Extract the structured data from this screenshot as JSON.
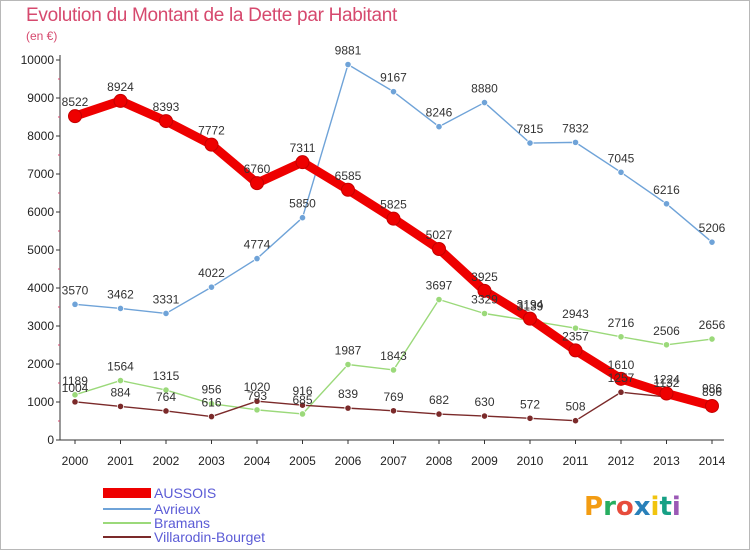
{
  "header": {
    "title": "Evolution du Montant de la Dette par Habitant",
    "subtitle": "(en €)"
  },
  "logo": {
    "letters": [
      "P",
      "r",
      "o",
      "x",
      "i",
      "t",
      "i"
    ],
    "colors": [
      "#f39c12",
      "#27ae60",
      "#e74c3c",
      "#2980b9",
      "#f1c40f",
      "#16a085",
      "#9b59b6"
    ]
  },
  "chart_data": {
    "type": "line",
    "title": "Evolution du Montant de la Dette par Habitant",
    "subtitle": "(en €)",
    "xlabel": "",
    "ylabel": "",
    "ylim": [
      0,
      10000
    ],
    "yticks": [
      0,
      1000,
      2000,
      3000,
      4000,
      5000,
      6000,
      7000,
      8000,
      9000,
      10000
    ],
    "categories": [
      "2000",
      "2001",
      "2002",
      "2003",
      "2004",
      "2005",
      "2006",
      "2007",
      "2008",
      "2009",
      "2010",
      "2011",
      "2012",
      "2013",
      "2014"
    ],
    "grid": false,
    "legend_position": "bottom-left",
    "series": [
      {
        "name": "AUSSOIS",
        "color": "#ee0000",
        "values": [
          8522,
          8924,
          8393,
          7772,
          6760,
          7311,
          6585,
          5825,
          5027,
          3925,
          3194,
          2357,
          1610,
          1224,
          896
        ]
      },
      {
        "name": "Avrieux",
        "color": "#6fa3d8",
        "values": [
          3570,
          3462,
          3331,
          4022,
          4774,
          5850,
          9881,
          9167,
          8246,
          8880,
          7815,
          7832,
          7045,
          6216,
          5206
        ]
      },
      {
        "name": "Bramans",
        "color": "#9bd97a",
        "values": [
          1189,
          1564,
          1315,
          956,
          793,
          685,
          1987,
          1843,
          3697,
          3329,
          3139,
          2943,
          2716,
          2506,
          2656
        ]
      },
      {
        "name": "Villarodin-Bourget",
        "color": "#7b2a2a",
        "values": [
          1004,
          884,
          764,
          616,
          1020,
          916,
          839,
          769,
          682,
          630,
          572,
          508,
          1257,
          1132,
          986
        ]
      }
    ]
  }
}
